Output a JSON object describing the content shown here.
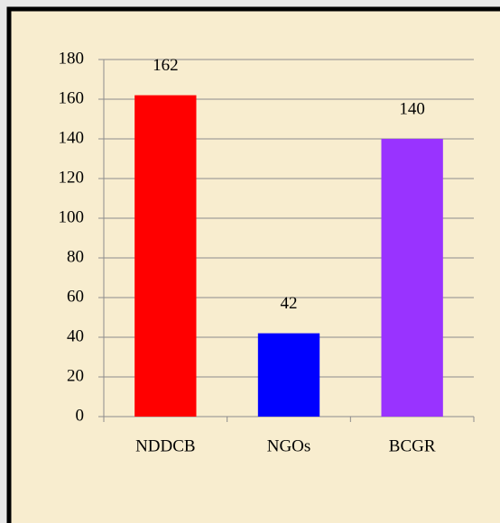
{
  "chart_data": {
    "type": "bar",
    "categories": [
      "NDDCB",
      "NGOs",
      "BCGR"
    ],
    "values": [
      162,
      42,
      140
    ],
    "colors": [
      "#ff0000",
      "#0000ff",
      "#9933ff"
    ],
    "ylim": [
      0,
      180
    ],
    "yticks": [
      0,
      20,
      40,
      60,
      80,
      100,
      120,
      140,
      160,
      180
    ],
    "grid": true
  }
}
